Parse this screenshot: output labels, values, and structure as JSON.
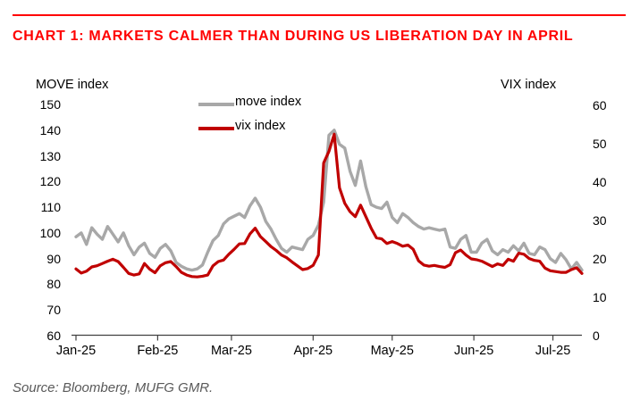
{
  "header": {
    "title": "CHART 1: MARKETS CALMER THAN DURING US LIBERATION DAY IN APRIL"
  },
  "source": "Source: Bloomberg, MUFG GMR.",
  "colors": {
    "title_red": "#ff0000",
    "rule_red": "#ff0000",
    "move_gray": "#a8a8a8",
    "vix_red": "#c00000",
    "axis_line": "#404040",
    "text_black": "#000000",
    "source_gray": "#595959"
  },
  "chart_data": {
    "type": "line",
    "title": "CHART 1: MARKETS CALMER THAN DURING US LIBERATION DAY IN APRIL",
    "grid": "off",
    "legend_position": "top-center",
    "legend": [
      {
        "label": "move index",
        "color_key": "move_gray"
      },
      {
        "label": "vix index",
        "color_key": "vix_red"
      }
    ],
    "left_axis": {
      "title": "MOVE index",
      "min": 60,
      "max": 150,
      "ticks": [
        150,
        140,
        130,
        120,
        110,
        100,
        90,
        80,
        70,
        60
      ]
    },
    "right_axis": {
      "title": "VIX index",
      "min": 0,
      "max": 60,
      "ticks": [
        60,
        50,
        40,
        30,
        20,
        10,
        0
      ]
    },
    "x_axis": {
      "tick_labels": [
        "Jan-25",
        "Feb-25",
        "Mar-25",
        "Apr-25",
        "May-25",
        "Jun-25",
        "Jul-25"
      ],
      "tick_days": [
        0,
        31,
        59,
        90,
        120,
        151,
        181
      ],
      "start_day": 0,
      "end_day": 192
    },
    "day_step": 2,
    "series": [
      {
        "name": "move index",
        "axis": "left",
        "color_key": "move_gray",
        "values": [
          98.5,
          100,
          95.5,
          102,
          99.5,
          97.5,
          102.5,
          99.5,
          96.5,
          100,
          95,
          91.5,
          94.5,
          96,
          92,
          90.5,
          94,
          95.5,
          93,
          88.5,
          87,
          86,
          85.5,
          86,
          87.5,
          92.5,
          97,
          99,
          103.5,
          105.5,
          106.5,
          107.5,
          106,
          110.5,
          113.5,
          110,
          104.5,
          101.5,
          97.5,
          94,
          92.5,
          94.5,
          94,
          93.5,
          97.5,
          99,
          103,
          112,
          138,
          140,
          134.5,
          133,
          124,
          118.5,
          128,
          118,
          111,
          110,
          109.5,
          112,
          106,
          104,
          107.5,
          106,
          104,
          102.5,
          101.5,
          102,
          101.5,
          101,
          101.5,
          94.5,
          94,
          97.5,
          99,
          92.5,
          92.5,
          96,
          97.5,
          93,
          91.5,
          93.5,
          92.5,
          95,
          93,
          96,
          92,
          91.5,
          94.5,
          93.5,
          90,
          88.5,
          92,
          89.5,
          86,
          88.5,
          85.5
        ]
      },
      {
        "name": "vix index",
        "axis": "right",
        "color_key": "vix_red",
        "values": [
          17.4,
          16.3,
          16.8,
          17.9,
          18.2,
          18.8,
          19.4,
          19.9,
          19.3,
          17.8,
          16.2,
          15.8,
          16.1,
          18.8,
          17.3,
          16.4,
          18.2,
          19,
          19.3,
          18,
          16.5,
          15.8,
          15.4,
          15.3,
          15.5,
          15.8,
          18.2,
          19.3,
          19.7,
          21.2,
          22.5,
          23.9,
          24,
          26.5,
          28,
          25.8,
          24.5,
          23.2,
          22.2,
          21,
          20.3,
          19.2,
          18.2,
          17.2,
          17.5,
          18.3,
          21,
          45,
          48,
          52.5,
          38.5,
          34.5,
          32.3,
          31,
          34,
          31,
          28,
          25.5,
          25.2,
          24,
          24.5,
          24,
          23.3,
          23.6,
          22.5,
          19.5,
          18.4,
          18.1,
          18.3,
          18,
          17.8,
          18.5,
          21.6,
          22.3,
          21,
          20,
          19.8,
          19.4,
          18.7,
          18,
          18.7,
          18.3,
          19.9,
          19.4,
          21.5,
          21.2,
          20.1,
          19.6,
          19.4,
          17.6,
          16.9,
          16.7,
          16.5,
          16.5,
          17.2,
          17.7,
          16.2
        ]
      }
    ]
  }
}
